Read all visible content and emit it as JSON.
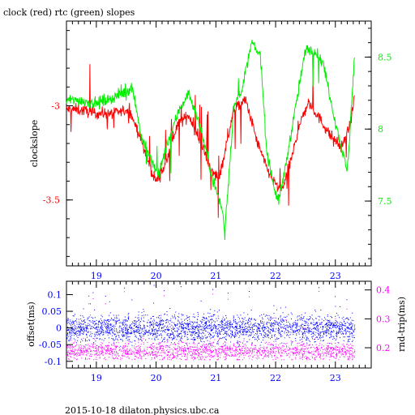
{
  "header": {
    "title": "clock (red) rtc (green) slopes",
    "footer": "2015-10-18  dilaton.physics.ubc.ca"
  },
  "colors": {
    "clock": "#ff0000",
    "rtc": "#00ee00",
    "offset": "#0000ff",
    "roundtrip": "#ff00ff",
    "axis": "#000000"
  },
  "chart_data": [
    {
      "type": "line",
      "title": "clock (red) rtc (green) slopes",
      "xlabel": "",
      "ylabel": "clockslope",
      "y2label": "",
      "xlim": [
        18.5,
        23.6
      ],
      "ylim": [
        -3.85,
        -2.55
      ],
      "y2lim": [
        7.05,
        8.75
      ],
      "xticks": [
        19,
        20,
        21,
        22,
        23
      ],
      "yticks": [
        -3,
        -3.5
      ],
      "y2ticks": [
        8.5,
        8,
        7.5
      ],
      "x_axis_position": "bottom",
      "legend": "none",
      "grid": false,
      "series": [
        {
          "name": "clock",
          "axis": "left",
          "x": [
            18.5,
            18.7,
            19.0,
            19.3,
            19.55,
            19.75,
            19.9,
            20.0,
            20.15,
            20.35,
            20.55,
            20.75,
            20.95,
            21.05,
            21.15,
            21.3,
            21.5,
            21.7,
            21.85,
            22.0,
            22.1,
            22.25,
            22.4,
            22.55,
            22.7,
            22.9,
            23.1,
            23.25,
            23.32
          ],
          "values": [
            -3.02,
            -3.02,
            -3.04,
            -3.04,
            -3.02,
            -3.18,
            -3.33,
            -3.4,
            -3.32,
            -3.1,
            -3.05,
            -3.2,
            -3.36,
            -3.38,
            -3.25,
            -3.02,
            -2.97,
            -3.2,
            -3.33,
            -3.42,
            -3.45,
            -3.3,
            -3.1,
            -2.98,
            -3.05,
            -3.15,
            -3.22,
            -3.1,
            -2.95
          ]
        },
        {
          "name": "rtc",
          "axis": "right",
          "x": [
            18.5,
            18.7,
            19.0,
            19.3,
            19.5,
            19.6,
            19.75,
            19.95,
            20.05,
            20.15,
            20.4,
            20.55,
            20.75,
            20.95,
            21.1,
            21.15,
            21.3,
            21.45,
            21.6,
            21.75,
            21.85,
            22.0,
            22.05,
            22.15,
            22.25,
            22.5,
            22.65,
            22.8,
            23.0,
            23.2,
            23.32
          ],
          "values": [
            8.2,
            8.2,
            8.18,
            8.22,
            8.26,
            8.3,
            7.95,
            7.75,
            7.68,
            7.85,
            8.15,
            8.25,
            8.0,
            7.65,
            7.45,
            7.3,
            8.15,
            8.3,
            8.6,
            8.5,
            7.85,
            7.55,
            7.5,
            7.7,
            7.95,
            8.55,
            8.55,
            8.45,
            8.05,
            7.7,
            8.5
          ]
        }
      ]
    },
    {
      "type": "scatter",
      "title": "",
      "xlabel": "",
      "ylabel": "offset(ms)",
      "y2label": "rnd-trip(ms)",
      "xlim": [
        18.5,
        23.6
      ],
      "ylim": [
        -0.12,
        0.14
      ],
      "y2lim": [
        0.13,
        0.43
      ],
      "xticks": [
        19,
        20,
        21,
        22,
        23
      ],
      "yticks": [
        0.1,
        0.05,
        0,
        -0.05,
        -0.1
      ],
      "y2ticks": [
        0.4,
        0.3,
        0.2
      ],
      "legend": "none",
      "grid": false,
      "series": [
        {
          "name": "offset",
          "axis": "left",
          "x_range": [
            18.5,
            23.32
          ],
          "center": 0.0,
          "spread": 0.02,
          "max": 0.13,
          "min": -0.08
        },
        {
          "name": "rnd-trip",
          "axis": "right",
          "x_range": [
            18.5,
            23.32
          ],
          "center": 0.19,
          "spread": 0.015,
          "max": 0.41,
          "min": 0.16
        }
      ]
    }
  ]
}
